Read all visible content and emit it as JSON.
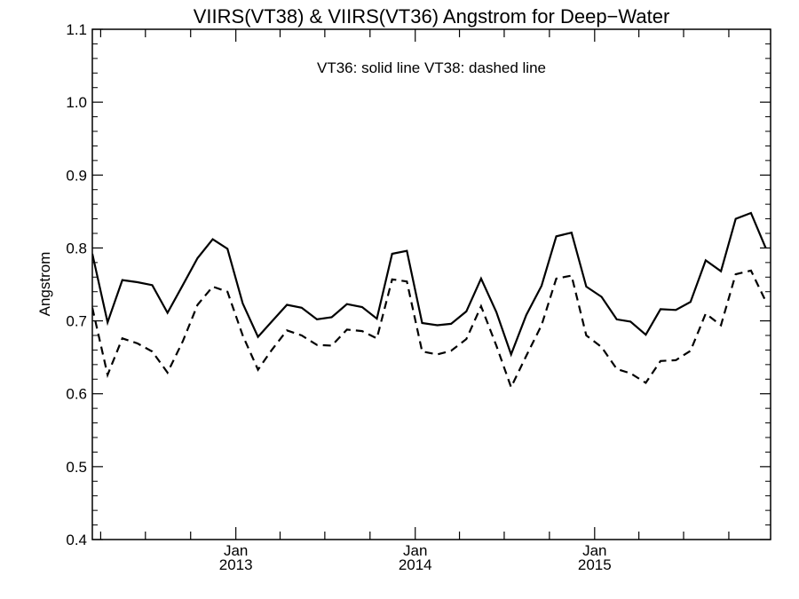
{
  "chart_data": {
    "type": "line",
    "title": "VIIRS(VT38) & VIIRS(VT36)  Angstrom for Deep−Water",
    "annotation": "VT36: solid line   VT38: dashed line",
    "ylabel": "Angstrom",
    "xlabel": "",
    "ylim": [
      0.4,
      1.1
    ],
    "yticks": [
      0.4,
      0.5,
      0.6,
      0.7,
      0.8,
      0.9,
      1.0,
      1.1
    ],
    "ytick_labels": [
      "0.4",
      "0.5",
      "0.6",
      "0.7",
      "0.8",
      "0.9",
      "1.0",
      "1.1"
    ],
    "x_type": "date",
    "xlim": [
      "2012-03-15",
      "2015-12-25"
    ],
    "xticks": [
      {
        "date": "2013-01-01",
        "month": "Jan",
        "year": "2013"
      },
      {
        "date": "2014-01-01",
        "month": "Jan",
        "year": "2014"
      },
      {
        "date": "2015-01-01",
        "month": "Jan",
        "year": "2015"
      }
    ],
    "x": [
      "2012-03-15",
      "2012-04-15",
      "2012-05-15",
      "2012-06-15",
      "2012-07-15",
      "2012-08-15",
      "2012-09-15",
      "2012-10-15",
      "2012-11-15",
      "2012-12-15",
      "2013-01-15",
      "2013-02-15",
      "2013-03-15",
      "2013-04-15",
      "2013-05-15",
      "2013-06-15",
      "2013-07-15",
      "2013-08-15",
      "2013-09-15",
      "2013-10-15",
      "2013-11-15",
      "2013-12-15",
      "2014-01-15",
      "2014-02-15",
      "2014-03-15",
      "2014-04-15",
      "2014-05-15",
      "2014-06-15",
      "2014-07-15",
      "2014-08-15",
      "2014-09-15",
      "2014-10-15",
      "2014-11-15",
      "2014-12-15",
      "2015-01-15",
      "2015-02-15",
      "2015-03-15",
      "2015-04-15",
      "2015-05-15",
      "2015-06-15",
      "2015-07-15",
      "2015-08-15",
      "2015-09-15",
      "2015-10-15",
      "2015-11-15",
      "2015-12-15"
    ],
    "series": [
      {
        "style": "solid",
        "values": [
          0.792,
          0.698,
          0.756,
          0.753,
          0.749,
          0.711,
          0.749,
          0.786,
          0.812,
          0.799,
          0.724,
          0.678,
          0.699,
          0.722,
          0.718,
          0.702,
          0.705,
          0.723,
          0.719,
          0.703,
          0.792,
          0.796,
          0.697,
          0.694,
          0.696,
          0.713,
          0.758,
          0.712,
          0.654,
          0.708,
          0.748,
          0.816,
          0.821,
          0.747,
          0.733,
          0.702,
          0.699,
          0.681,
          0.716,
          0.715,
          0.726,
          0.783,
          0.768,
          0.84,
          0.848,
          0.8
        ]
      },
      {
        "style": "dashed",
        "values": [
          0.718,
          0.626,
          0.676,
          0.669,
          0.658,
          0.629,
          0.672,
          0.722,
          0.747,
          0.74,
          0.68,
          0.633,
          0.66,
          0.687,
          0.68,
          0.667,
          0.666,
          0.688,
          0.686,
          0.676,
          0.757,
          0.754,
          0.658,
          0.654,
          0.659,
          0.675,
          0.72,
          0.666,
          0.609,
          0.652,
          0.694,
          0.758,
          0.762,
          0.68,
          0.664,
          0.634,
          0.628,
          0.615,
          0.645,
          0.646,
          0.659,
          0.71,
          0.694,
          0.764,
          0.769,
          0.727
        ]
      }
    ]
  }
}
